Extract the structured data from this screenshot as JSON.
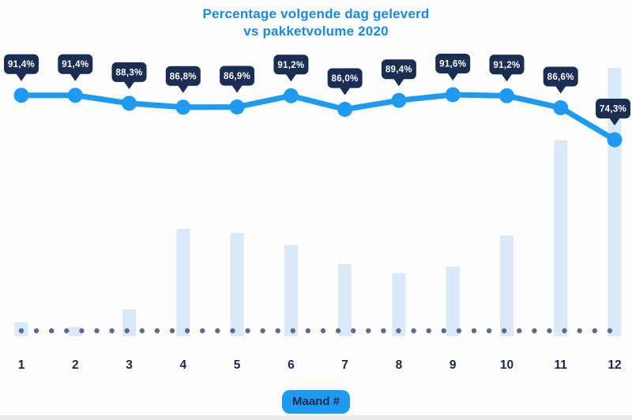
{
  "title": {
    "line1": "Percentage volgende dag geleverd",
    "line2": "vs pakketvolume 2020"
  },
  "x_axis": {
    "badge_label": "Maand #"
  },
  "chart_data": {
    "type": "combo",
    "title": "Percentage volgende dag geleverd vs pakketvolume 2020",
    "xlabel": "Maand #",
    "categories": [
      "1",
      "2",
      "3",
      "4",
      "5",
      "6",
      "7",
      "8",
      "9",
      "10",
      "11",
      "12"
    ],
    "series": [
      {
        "name": "Percentage volgende dag geleverd",
        "type": "line",
        "unit": "%",
        "values": [
          91.4,
          91.4,
          88.3,
          86.8,
          86.9,
          91.2,
          86.0,
          89.4,
          91.6,
          91.2,
          86.6,
          74.3
        ],
        "data_labels": [
          "91,4%",
          "91,4%",
          "88,3%",
          "86,8%",
          "86,9%",
          "91,2%",
          "86,0%",
          "89,4%",
          "91,6%",
          "91,2%",
          "86,6%",
          "74,3%"
        ]
      },
      {
        "name": "Pakketvolume 2020",
        "type": "bar",
        "unit": "relative (no axis shown)",
        "values_relative": [
          0.053,
          0.035,
          0.1,
          0.4,
          0.385,
          0.34,
          0.27,
          0.235,
          0.26,
          0.375,
          0.73,
          1.0
        ]
      }
    ],
    "y_axis_visible": false,
    "grid": false,
    "legend": "none",
    "baseline_dotted": true
  },
  "colors": {
    "accent_blue": "#1e9bf0",
    "title_blue": "#1789e6",
    "navy": "#16294e",
    "bubble_navy": "#1a2d52",
    "bubble_text": "#ffffff",
    "bar_fill": "#d9e9f8",
    "dotted_line": "#5b6c8e",
    "background": "#fdfdfd"
  }
}
